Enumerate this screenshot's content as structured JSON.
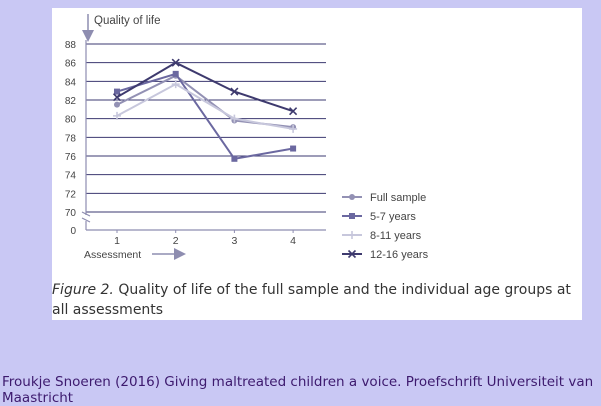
{
  "chart_data": {
    "type": "line",
    "ylabel": "Quality of life",
    "xlabel": "Assessment",
    "categories": [
      "1",
      "2",
      "3",
      "4"
    ],
    "y_ticks": [
      "0",
      "70",
      "72",
      "74",
      "76",
      "78",
      "80",
      "82",
      "84",
      "86",
      "88"
    ],
    "ylim": [
      70,
      88
    ],
    "axis_break": true,
    "grid": true,
    "legend_position": "right",
    "series": [
      {
        "name": "Full sample",
        "marker": "circle",
        "color": "#9391b4",
        "values": [
          81.5,
          84.6,
          79.8,
          79.1
        ]
      },
      {
        "name": "5-7 years",
        "marker": "square",
        "color": "#6b68a0",
        "values": [
          82.9,
          84.8,
          75.7,
          76.8
        ]
      },
      {
        "name": "8-11 years",
        "marker": "plus",
        "color": "#c7c7dc",
        "values": [
          80.3,
          83.7,
          80.0,
          78.9
        ]
      },
      {
        "name": "12-16 years",
        "marker": "x",
        "color": "#3e3a6e",
        "values": [
          82.3,
          86.0,
          82.9,
          80.8
        ]
      }
    ]
  },
  "caption": {
    "figure_label": "Figure 2.",
    "text": " Quality of life of the full sample and the individual age groups at all assessments"
  },
  "credit": "Froukje Snoeren (2016) Giving maltreated children a voice. Proefschrift Universiteit van Maastricht"
}
